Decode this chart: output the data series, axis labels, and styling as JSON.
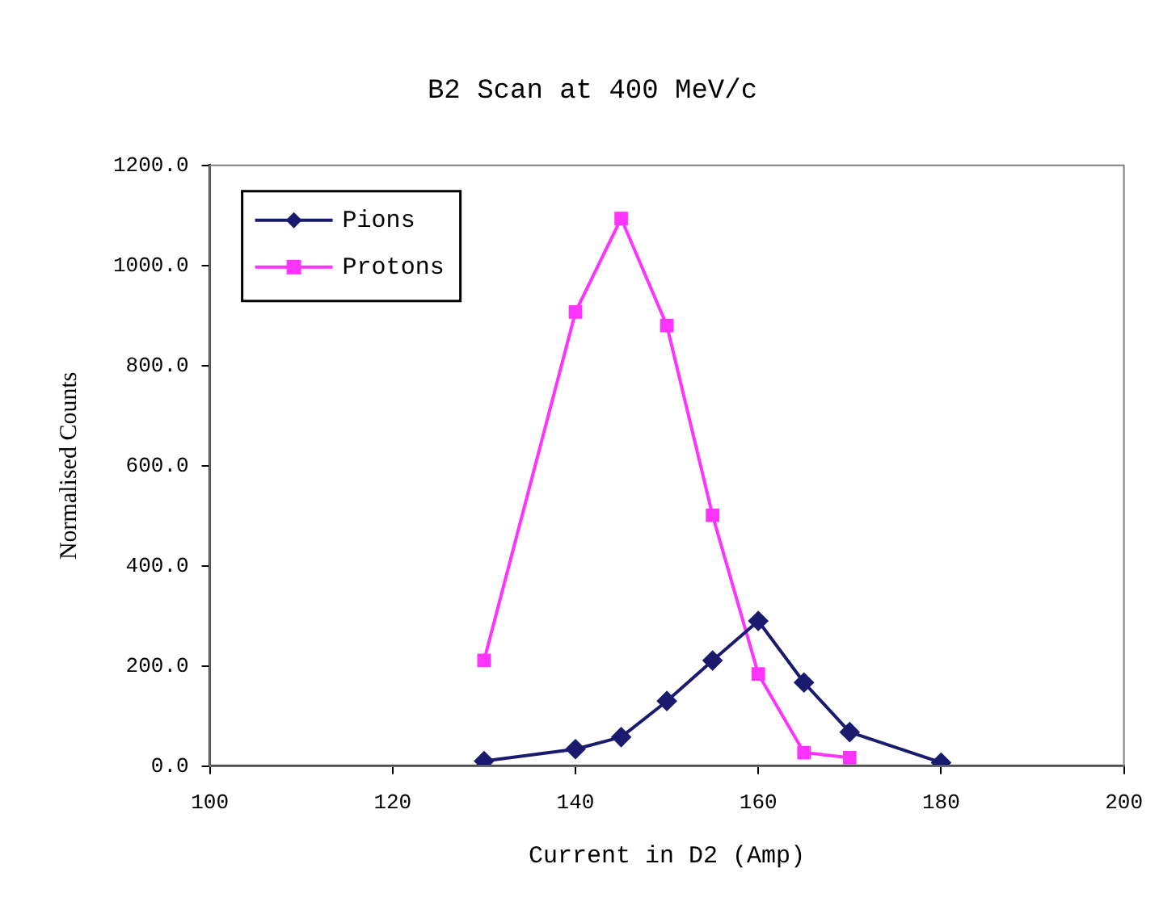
{
  "chart_data": {
    "type": "line",
    "title": "B2 Scan at 400 MeV/c",
    "xlabel": "Current in D2 (Amp)",
    "ylabel": "Normalised Counts",
    "xlim": [
      100,
      200
    ],
    "xticks": [
      100,
      120,
      140,
      160,
      180,
      200
    ],
    "ylim": [
      0,
      1200
    ],
    "yticks": [
      {
        "value": 0,
        "label": "0.0"
      },
      {
        "value": 200,
        "label": "200.0"
      },
      {
        "value": 400,
        "label": "400.0"
      },
      {
        "value": 600,
        "label": "600.0"
      },
      {
        "value": 800,
        "label": "800.0"
      },
      {
        "value": 1000,
        "label": "1000.0"
      },
      {
        "value": 1200,
        "label": "1200.0"
      }
    ],
    "grid": false,
    "legend": "top left",
    "series": [
      {
        "name": "Pions",
        "color": "#1a1a6e",
        "marker": "diamond",
        "x": [
          130,
          140,
          145,
          150,
          155,
          160,
          165,
          170,
          180
        ],
        "values": [
          10,
          34,
          58,
          130,
          211,
          290,
          167,
          68,
          7
        ]
      },
      {
        "name": "Protons",
        "color": "#ff33ff",
        "marker": "square",
        "x": [
          130,
          140,
          145,
          150,
          155,
          160,
          165,
          170
        ],
        "values": [
          211,
          907,
          1094,
          880,
          501,
          184,
          27,
          17
        ]
      }
    ]
  }
}
